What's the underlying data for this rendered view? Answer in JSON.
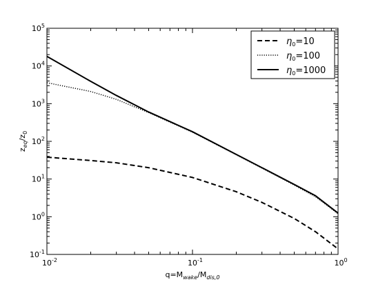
{
  "chart_data": {
    "type": "line",
    "xscale": "log",
    "yscale": "log",
    "xlim": [
      0.01,
      1
    ],
    "ylim": [
      0.1,
      100000
    ],
    "x_ticks": [
      {
        "base": "10",
        "exp": "-2",
        "value": 0.01
      },
      {
        "base": "10",
        "exp": "-1",
        "value": 0.1
      },
      {
        "base": "10",
        "exp": "0",
        "value": 1
      }
    ],
    "y_ticks": [
      {
        "base": "10",
        "exp": "-1",
        "value": 0.1
      },
      {
        "base": "10",
        "exp": "0",
        "value": 1
      },
      {
        "base": "10",
        "exp": "1",
        "value": 10
      },
      {
        "base": "10",
        "exp": "2",
        "value": 100
      },
      {
        "base": "10",
        "exp": "3",
        "value": 1000
      },
      {
        "base": "10",
        "exp": "4",
        "value": 10000
      },
      {
        "base": "10",
        "exp": "5",
        "value": 100000
      }
    ],
    "xlabel": {
      "main": "q=M",
      "sub1": "wake",
      "mid": "/M",
      "sub2": "dis,0"
    },
    "ylabel": {
      "main": "z",
      "sub1": "eq",
      "mid": "/z",
      "sub2": "0"
    },
    "grid": false,
    "legend_position": "top-right",
    "series": [
      {
        "name_main": "η",
        "name_sub": "0",
        "name_rest": "=10",
        "style": "dashed",
        "x": [
          0.01,
          0.02,
          0.03,
          0.05,
          0.1,
          0.2,
          0.3,
          0.5,
          0.7,
          1.0
        ],
        "y": [
          38,
          31,
          27,
          20,
          11,
          4.6,
          2.4,
          0.9,
          0.4,
          0.14
        ]
      },
      {
        "name_main": "η",
        "name_sub": "0",
        "name_rest": "=100",
        "style": "dotted",
        "x": [
          0.01,
          0.02,
          0.03,
          0.05,
          0.1,
          0.2,
          0.3,
          0.5,
          0.7,
          1.0
        ],
        "y": [
          3600,
          2100,
          1300,
          580,
          175,
          44,
          19.5,
          6.9,
          3.4,
          1.2
        ]
      },
      {
        "name_main": "η",
        "name_sub": "0",
        "name_rest": "=1000",
        "style": "solid",
        "x": [
          0.01,
          0.02,
          0.03,
          0.05,
          0.1,
          0.2,
          0.3,
          0.5,
          0.7,
          1.0
        ],
        "y": [
          18000,
          3900,
          1650,
          600,
          180,
          45,
          20,
          7.2,
          3.6,
          1.25
        ]
      }
    ]
  }
}
